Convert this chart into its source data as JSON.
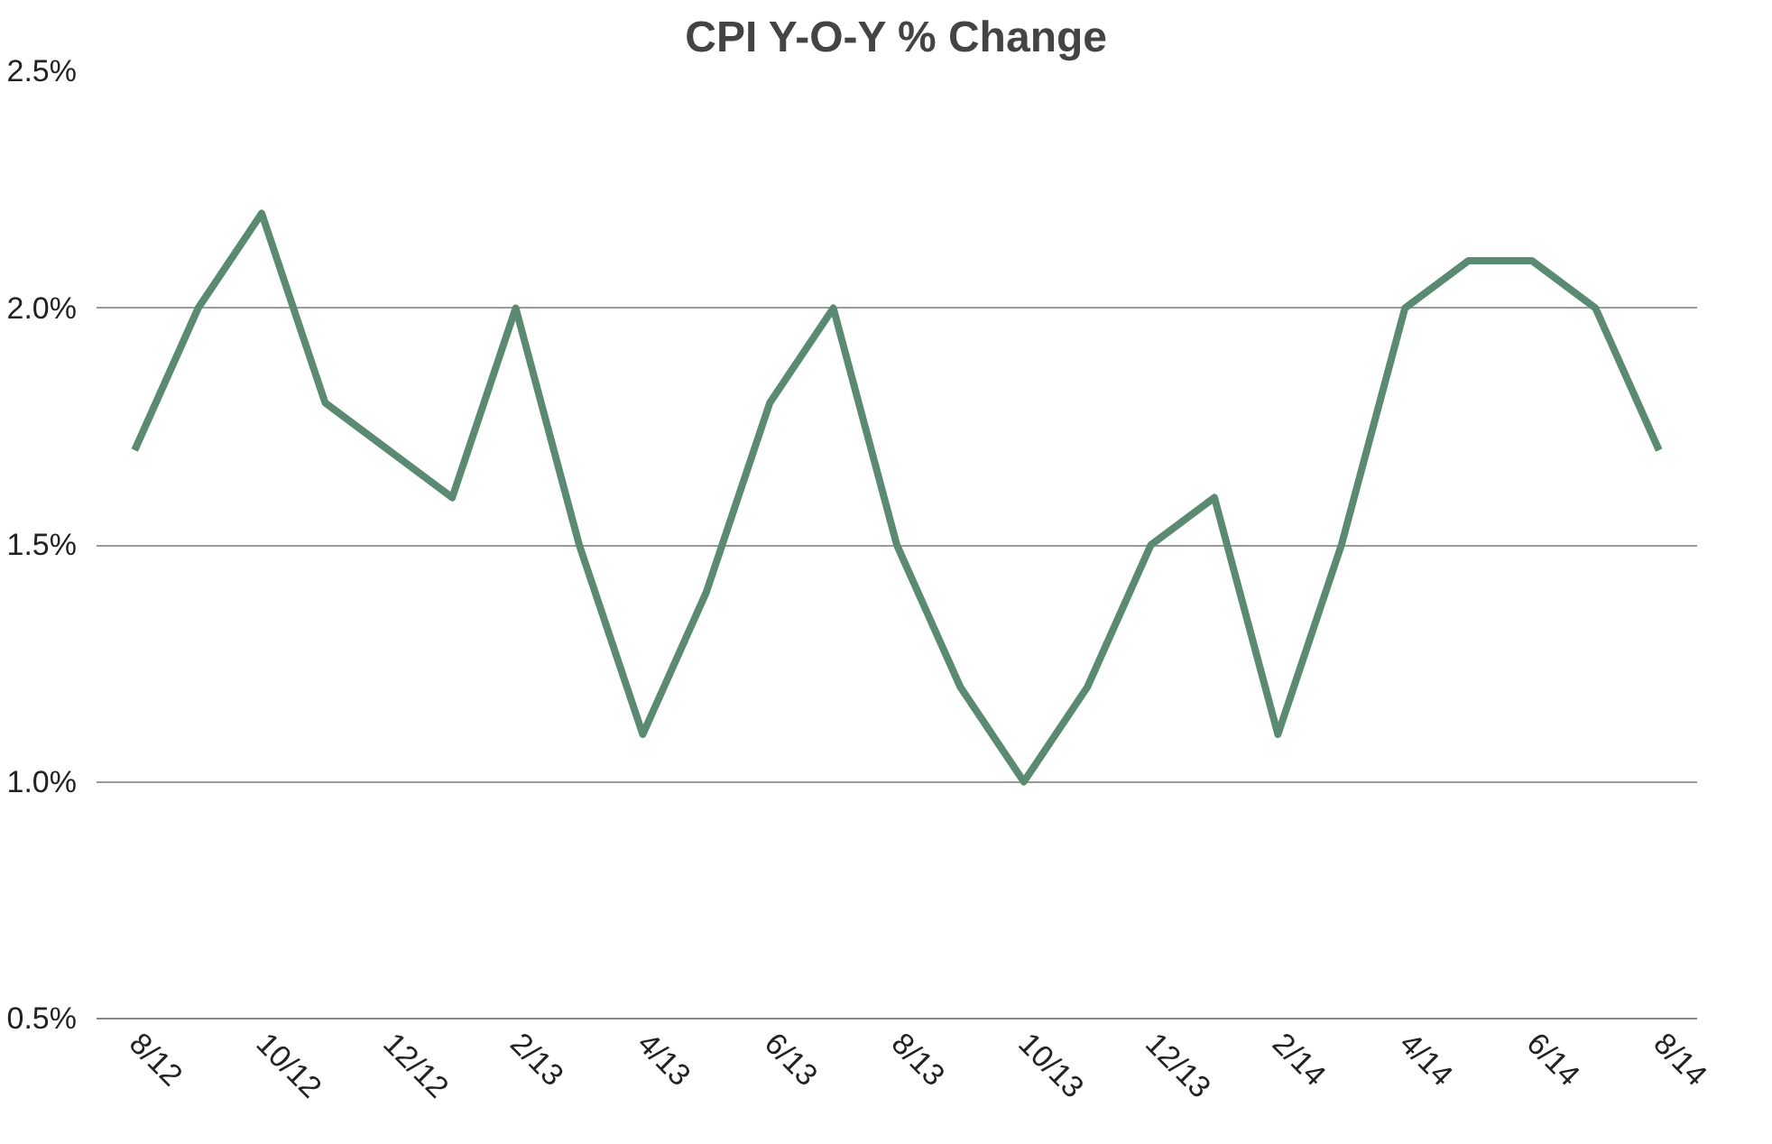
{
  "chart_data": {
    "type": "line",
    "title": "CPI Y-O-Y % Change",
    "categories": [
      "8/12",
      null,
      "10/12",
      null,
      "12/12",
      null,
      "2/13",
      null,
      "4/13",
      null,
      "6/13",
      null,
      "8/13",
      null,
      "10/13",
      null,
      "12/13",
      null,
      "2/14",
      null,
      "4/14",
      null,
      "6/14",
      null,
      "8/14"
    ],
    "series": [
      {
        "color": "#5b8a72",
        "values": [
          1.7,
          2.0,
          2.2,
          1.8,
          1.7,
          1.6,
          2.0,
          1.5,
          1.1,
          1.4,
          1.8,
          2.0,
          1.5,
          1.2,
          1.0,
          1.2,
          1.5,
          1.6,
          1.1,
          1.5,
          2.0,
          2.1,
          2.1,
          2.0,
          1.7
        ]
      }
    ],
    "ylim": [
      0.5,
      2.5
    ],
    "yticks": [
      {
        "value": 0.5,
        "label": "0.5%"
      },
      {
        "value": 1.0,
        "label": "1.0%"
      },
      {
        "value": 1.5,
        "label": "1.5%"
      },
      {
        "value": 2.0,
        "label": "2.0%"
      },
      {
        "value": 2.5,
        "label": "2.5%"
      }
    ],
    "grid": "y",
    "marker": "none",
    "line_style": "solid"
  }
}
